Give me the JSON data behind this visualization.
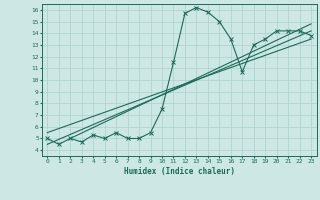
{
  "xlabel": "Humidex (Indice chaleur)",
  "ylabel": "",
  "bg_color": "#cde8e4",
  "line_color": "#1a6b5a",
  "grid_color": "#afd4cf",
  "xlim": [
    -0.5,
    23.5
  ],
  "ylim": [
    3.5,
    16.5
  ],
  "xticks": [
    0,
    1,
    2,
    3,
    4,
    5,
    6,
    7,
    8,
    9,
    10,
    11,
    12,
    13,
    14,
    15,
    16,
    17,
    18,
    19,
    20,
    21,
    22,
    23
  ],
  "yticks": [
    4,
    5,
    6,
    7,
    8,
    9,
    10,
    11,
    12,
    13,
    14,
    15,
    16
  ],
  "curve1_x": [
    0,
    1,
    2,
    3,
    4,
    5,
    6,
    7,
    8,
    9,
    10,
    11,
    12,
    13,
    14,
    15,
    16,
    17,
    18,
    19,
    20,
    21,
    22,
    23
  ],
  "curve1_y": [
    5.0,
    4.5,
    5.0,
    4.7,
    5.3,
    5.0,
    5.5,
    5.0,
    5.0,
    5.5,
    7.5,
    11.5,
    15.7,
    16.2,
    15.8,
    15.0,
    13.5,
    10.7,
    13.0,
    13.5,
    14.2,
    14.2,
    14.2,
    13.8
  ],
  "reg_line1_x": [
    0,
    23
  ],
  "reg_line1_y": [
    4.5,
    14.2
  ],
  "reg_line2_x": [
    0,
    23
  ],
  "reg_line2_y": [
    5.5,
    13.5
  ],
  "reg_line3_x": [
    2,
    23
  ],
  "reg_line3_y": [
    5.0,
    14.8
  ]
}
